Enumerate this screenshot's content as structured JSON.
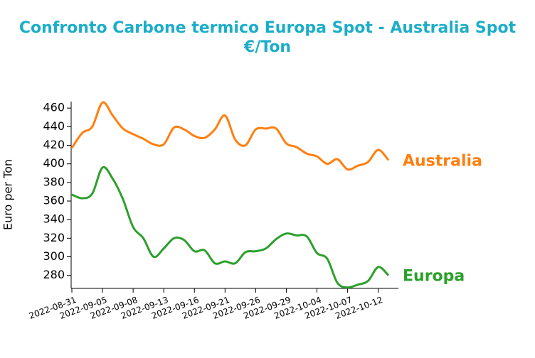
{
  "chart_data": {
    "type": "line",
    "title": [
      "Confronto Carbone termico Europa Spot - Australia Spot",
      "€/Ton"
    ],
    "ylabel": "Euro per Ton",
    "categories": [
      "2022-08-31",
      null,
      null,
      "2022-09-05",
      null,
      null,
      "2022-09-08",
      null,
      null,
      "2022-09-13",
      null,
      null,
      "2022-09-16",
      null,
      null,
      "2022-09-21",
      null,
      null,
      "2022-09-26",
      null,
      null,
      "2022-09-29",
      null,
      null,
      "2022-10-04",
      null,
      null,
      "2022-10-07",
      null,
      null,
      "2022-10-12",
      null
    ],
    "series": [
      {
        "name": "Australia",
        "color": "#ff7f0e",
        "values": [
          417,
          433,
          440,
          466,
          452,
          438,
          432,
          427,
          421,
          421,
          439,
          437,
          430,
          428,
          437,
          452,
          426,
          420,
          437,
          438,
          438,
          422,
          418,
          411,
          408,
          400,
          405,
          394,
          398,
          402,
          415,
          404
        ]
      },
      {
        "name": "Europa",
        "color": "#2ca02c",
        "values": [
          367,
          363,
          368,
          396,
          384,
          362,
          332,
          320,
          300,
          309,
          320,
          318,
          306,
          307,
          293,
          295,
          293,
          305,
          306,
          309,
          319,
          325,
          323,
          322,
          304,
          298,
          272,
          267,
          270,
          274,
          289,
          280
        ]
      }
    ],
    "ylim": [
      266,
      467
    ],
    "yticks": [
      280,
      300,
      320,
      340,
      360,
      380,
      400,
      420,
      440,
      460
    ]
  }
}
